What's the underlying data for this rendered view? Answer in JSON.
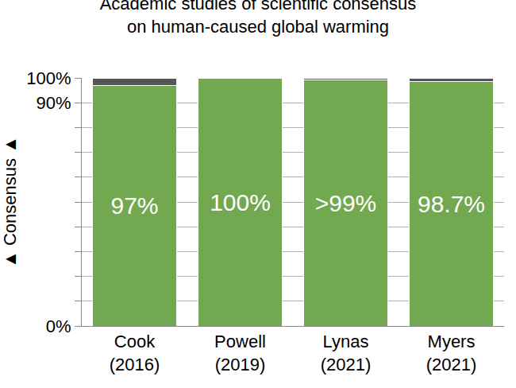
{
  "chart_data": {
    "type": "bar",
    "stacked": true,
    "title": "Academic studies of scientific consensus\non human-caused global warming",
    "y_label": "▲ Consensus ▲",
    "categories": [
      "Cook\n(2016)",
      "Powell\n(2019)",
      "Lynas\n(2021)",
      "Myers\n(2021)"
    ],
    "series": [
      {
        "color": "#72a84f",
        "values": [
          97,
          100,
          99.3,
          98.7
        ],
        "value_labels": [
          "97%",
          "100%",
          ">99%",
          "98.7%"
        ]
      },
      {
        "color": "#555555",
        "values": [
          3,
          0,
          0.7,
          1.3
        ]
      }
    ],
    "data_labels": true,
    "ylim": [
      0,
      100
    ],
    "yticks": [
      {
        "value": 0,
        "label": "0%"
      },
      {
        "value": 10,
        "label": null
      },
      {
        "value": 20,
        "label": null
      },
      {
        "value": 30,
        "label": null
      },
      {
        "value": 40,
        "label": null
      },
      {
        "value": 50,
        "label": null
      },
      {
        "value": 60,
        "label": null
      },
      {
        "value": 70,
        "label": null
      },
      {
        "value": 80,
        "label": null
      },
      {
        "value": 90,
        "label": "90%"
      },
      {
        "value": 100,
        "label": "100%"
      }
    ],
    "grid": true
  }
}
